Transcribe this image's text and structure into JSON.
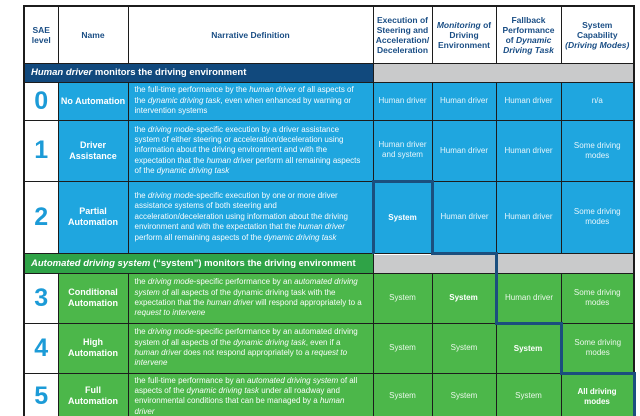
{
  "colors": {
    "cyan_cell": "#1FA6DF",
    "green_cell": "#4CB74A",
    "green_banner": "#2FA347",
    "navy_banner": "#11497D",
    "gray_banner": "#C9CACB",
    "stair_line": "#1B4F7E",
    "header_text": "#1A4E85",
    "level_number": "#1C9BD7",
    "grid_line": "#1C1C1C"
  },
  "table": {
    "columns": [
      {
        "id": "sae-level",
        "header": [
          {
            "t": "SAE level"
          }
        ]
      },
      {
        "id": "name",
        "header": [
          {
            "t": "Name"
          }
        ]
      },
      {
        "id": "narrative",
        "header": [
          {
            "t": "Narrative Definition"
          }
        ]
      },
      {
        "id": "execution",
        "header": [
          {
            "t": "Execution of Steering and Acceleration/ Deceleration"
          }
        ]
      },
      {
        "id": "monitoring",
        "header": [
          {
            "t": "Monitoring",
            "i": true
          },
          {
            "t": " of Driving Environment"
          }
        ]
      },
      {
        "id": "fallback",
        "header": [
          {
            "t": "Fallback Performance of "
          },
          {
            "t": "Dynamic Driving Task",
            "i": true
          }
        ]
      },
      {
        "id": "capability",
        "header": [
          {
            "t": "System Capability "
          },
          {
            "t": "(Driving Modes)",
            "i": true
          }
        ]
      }
    ],
    "sections": [
      {
        "kind": "human",
        "banner": [
          {
            "t": "Human driver",
            "i": true
          },
          {
            "t": " monitors the driving environment"
          }
        ],
        "gray_cells": [
          {
            "span": 4
          }
        ],
        "rows": [
          {
            "level": "0",
            "name": "No Automation",
            "narrative": [
              {
                "t": "the full-time performance by the "
              },
              {
                "t": "human driver",
                "i": true
              },
              {
                "t": " of all aspects of the "
              },
              {
                "t": "dynamic driving task",
                "i": true
              },
              {
                "t": ", even when enhanced by warning or intervention systems"
              }
            ],
            "values": [
              {
                "t": "Human driver"
              },
              {
                "t": "Human driver"
              },
              {
                "t": "Human driver"
              },
              {
                "t": "n/a"
              }
            ]
          },
          {
            "level": "1",
            "name": "Driver Assistance",
            "narrative": [
              {
                "t": "the "
              },
              {
                "t": "driving mode",
                "i": true
              },
              {
                "t": "-specific execution by a driver assistance system of either steering or acceleration/deceleration using information about the driving environment and with the expectation that the "
              },
              {
                "t": "human driver",
                "i": true
              },
              {
                "t": " perform all remaining aspects of the "
              },
              {
                "t": "dynamic driving task",
                "i": true
              }
            ],
            "values": [
              {
                "t": "Human driver and system"
              },
              {
                "t": "Human driver"
              },
              {
                "t": "Human driver"
              },
              {
                "t": "Some driving modes"
              }
            ]
          },
          {
            "level": "2",
            "name": "Partial Automation",
            "narrative": [
              {
                "t": "the "
              },
              {
                "t": "driving mode",
                "i": true
              },
              {
                "t": "-specific execution by one or more driver assistance systems of both steering and acceleration/deceleration using information about the driving environment and with the expectation that the "
              },
              {
                "t": "human driver",
                "i": true
              },
              {
                "t": " perform all remaining aspects of the "
              },
              {
                "t": "dynamic driving task",
                "i": true
              }
            ],
            "values": [
              {
                "t": "System",
                "bold": true,
                "stair": [
                  "left",
                  "top",
                  "right"
                ]
              },
              {
                "t": "Human driver",
                "stair": [
                  "bottom"
                ]
              },
              {
                "t": "Human driver"
              },
              {
                "t": "Some driving modes"
              }
            ]
          }
        ]
      },
      {
        "kind": "system",
        "banner": [
          {
            "t": "Automated driving system",
            "i": true
          },
          {
            "t": " (“system”) monitors the driving environment"
          }
        ],
        "gray_cells": [
          {
            "span": 2,
            "stair": [
              "right"
            ]
          },
          {
            "span": 2
          }
        ],
        "rows": [
          {
            "level": "3",
            "name": "Conditional Automation",
            "narrative": [
              {
                "t": "the "
              },
              {
                "t": "driving mode",
                "i": true
              },
              {
                "t": "-specific performance by an "
              },
              {
                "t": "automated driving system",
                "i": true
              },
              {
                "t": " of all aspects of the dynamic driving task with the expectation that the "
              },
              {
                "t": "human driver",
                "i": true
              },
              {
                "t": " will respond appropriately to a "
              },
              {
                "t": "request to intervene",
                "i": true
              }
            ],
            "values": [
              {
                "t": "System"
              },
              {
                "t": "System",
                "bold": true
              },
              {
                "t": "Human driver",
                "stair": [
                  "left",
                  "bottom"
                ]
              },
              {
                "t": "Some driving modes"
              }
            ]
          },
          {
            "level": "4",
            "name": "High Automation",
            "narrative": [
              {
                "t": "the "
              },
              {
                "t": "driving mode",
                "i": true
              },
              {
                "t": "-specific performance by an automated driving system of all aspects of the "
              },
              {
                "t": "dynamic driving task",
                "i": true
              },
              {
                "t": ", even if a "
              },
              {
                "t": "human driver",
                "i": true
              },
              {
                "t": " does not respond appropriately to a "
              },
              {
                "t": "request to intervene",
                "i": true
              }
            ],
            "values": [
              {
                "t": "System"
              },
              {
                "t": "System"
              },
              {
                "t": "System",
                "bold": true
              },
              {
                "t": "Some driving modes",
                "stair": [
                  "left",
                  "bottom"
                ]
              }
            ]
          },
          {
            "level": "5",
            "name": "Full Automation",
            "narrative": [
              {
                "t": "the full-time performance by an "
              },
              {
                "t": "automated driving system",
                "i": true
              },
              {
                "t": " of all aspects of the "
              },
              {
                "t": "dynamic driving task",
                "i": true
              },
              {
                "t": " under all roadway and environmental conditions that can be managed by a "
              },
              {
                "t": "human driver",
                "i": true
              }
            ],
            "values": [
              {
                "t": "System"
              },
              {
                "t": "System"
              },
              {
                "t": "System"
              },
              {
                "t": "All driving modes",
                "bold": true,
                "stair": [
                  "right"
                ]
              }
            ]
          }
        ]
      }
    ]
  }
}
